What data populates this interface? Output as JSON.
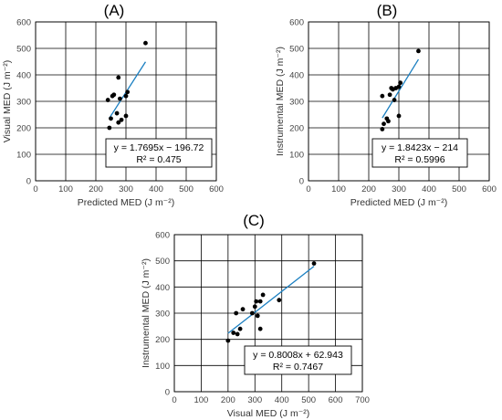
{
  "chart_data": [
    {
      "type": "scatter",
      "panel": "(A)",
      "xlabel": "Predicted MED (J m⁻²)",
      "ylabel": "Visual MED (J m⁻²)",
      "xlim": [
        0,
        600
      ],
      "ylim": [
        0,
        600
      ],
      "xticks": [
        0,
        100,
        200,
        300,
        400,
        500,
        600
      ],
      "yticks": [
        0,
        100,
        200,
        300,
        400,
        500,
        600
      ],
      "grid": true,
      "points": [
        [
          245,
          200
        ],
        [
          250,
          235
        ],
        [
          240,
          305
        ],
        [
          255,
          320
        ],
        [
          260,
          325
        ],
        [
          270,
          255
        ],
        [
          275,
          220
        ],
        [
          285,
          230
        ],
        [
          280,
          310
        ],
        [
          275,
          390
        ],
        [
          300,
          320
        ],
        [
          305,
          335
        ],
        [
          300,
          245
        ],
        [
          365,
          520
        ]
      ],
      "trendline": {
        "x": [
          245,
          365
        ],
        "slope": 1.7695,
        "intercept": -196.72,
        "color": "#1a7fc1"
      },
      "equation": "y = 1.7695x − 196.72",
      "r2": "R² = 0.475"
    },
    {
      "type": "scatter",
      "panel": "(B)",
      "xlabel": "Predicted MED (J m⁻²)",
      "ylabel": "Instrumental MED (J m⁻²)",
      "xlim": [
        0,
        600
      ],
      "ylim": [
        0,
        600
      ],
      "xticks": [
        0,
        100,
        200,
        300,
        400,
        500,
        600
      ],
      "yticks": [
        0,
        100,
        200,
        300,
        400,
        500,
        600
      ],
      "grid": true,
      "points": [
        [
          245,
          195
        ],
        [
          250,
          215
        ],
        [
          245,
          320
        ],
        [
          260,
          235
        ],
        [
          265,
          225
        ],
        [
          270,
          325
        ],
        [
          275,
          350
        ],
        [
          280,
          345
        ],
        [
          285,
          305
        ],
        [
          290,
          350
        ],
        [
          300,
          245
        ],
        [
          300,
          355
        ],
        [
          305,
          370
        ],
        [
          365,
          490
        ]
      ],
      "trendline": {
        "x": [
          245,
          365
        ],
        "slope": 1.8423,
        "intercept": -214,
        "color": "#1a7fc1"
      },
      "equation": "y = 1.8423x − 214",
      "r2": "R² = 0.5996"
    },
    {
      "type": "scatter",
      "panel": "(C)",
      "xlabel": "Visual MED (J m⁻²)",
      "ylabel": "Instrumental MED (J m⁻²)",
      "xlim": [
        0,
        700
      ],
      "ylim": [
        0,
        600
      ],
      "xticks": [
        0,
        100,
        200,
        300,
        400,
        500,
        600,
        700
      ],
      "yticks": [
        0,
        100,
        200,
        300,
        400,
        500,
        600
      ],
      "grid": true,
      "points": [
        [
          200,
          195
        ],
        [
          220,
          225
        ],
        [
          230,
          300
        ],
        [
          235,
          220
        ],
        [
          245,
          240
        ],
        [
          255,
          315
        ],
        [
          290,
          300
        ],
        [
          300,
          325
        ],
        [
          305,
          345
        ],
        [
          310,
          290
        ],
        [
          320,
          240
        ],
        [
          320,
          345
        ],
        [
          330,
          370
        ],
        [
          390,
          350
        ],
        [
          520,
          490
        ]
      ],
      "trendline": {
        "x": [
          200,
          520
        ],
        "slope": 0.8008,
        "intercept": 62.943,
        "color": "#1a7fc1"
      },
      "equation": "y = 0.8008x + 62.943",
      "r2": "R² = 0.7467"
    }
  ]
}
